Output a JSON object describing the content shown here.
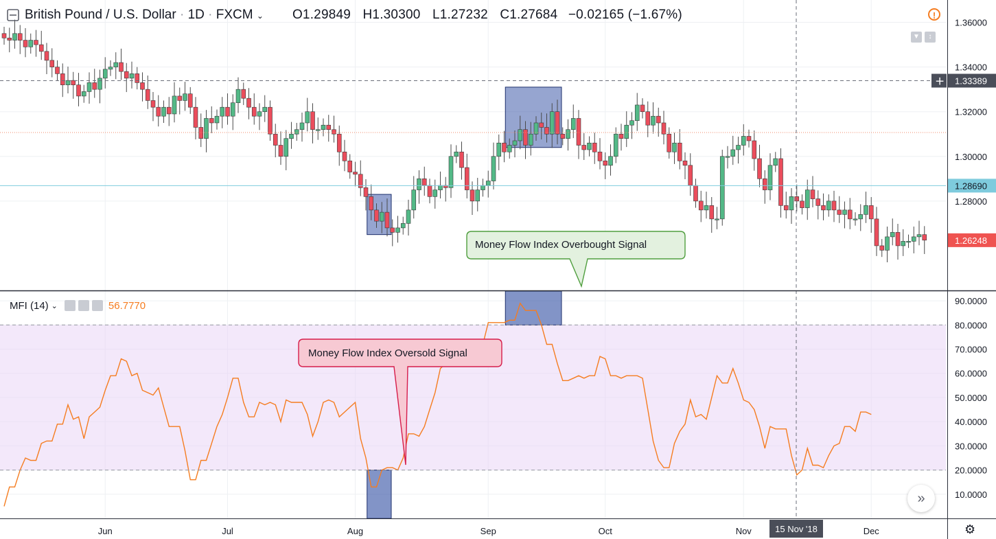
{
  "header": {
    "symbol": "British Pound / U.S. Dollar",
    "interval": "1D",
    "exchange": "FXCM",
    "open": "O1.29849",
    "high": "H1.30300",
    "low": "L1.27232",
    "close": "C1.27684",
    "change": "−0.02165 (−1.67%)"
  },
  "indicator": {
    "name": "MFI (14)",
    "value": "56.7770"
  },
  "annotations": {
    "overbought": "Money Flow Index Overbought Signal",
    "oversold": "Money Flow Index Oversold Signal"
  },
  "colors": {
    "up": "#53b987",
    "down": "#eb4d5c",
    "mfi_line": "#f57c1f",
    "band": "#e9d5f5",
    "highlight": "#3f5ba9",
    "crosshair_label": "#4a4e59",
    "price_label": "#ef5350",
    "cyan_label": "#7ecbdd"
  },
  "icons": [
    "collapse-icon",
    "chevron-down-icon",
    "warning-icon",
    "settings-icon",
    "forward-icon"
  ],
  "chart_data": [
    {
      "type": "candlestick",
      "title": "British Pound / U.S. Dollar · 1D · FXCM",
      "y_ticks": [
        "1.36000",
        "1.34000",
        "1.32000",
        "1.30000",
        "1.28000"
      ],
      "ylim": [
        1.24,
        1.37
      ],
      "price_labels": {
        "crosshair": "1.33389",
        "line": "1.28690",
        "last": "1.26248"
      },
      "x_ticks": [
        "Jun",
        "Jul",
        "Aug",
        "Sep",
        "Oct",
        "Nov",
        "Dec"
      ],
      "crosshair_date": "15 Nov '18",
      "closes": [
        1.353,
        1.352,
        1.355,
        1.352,
        1.349,
        1.352,
        1.35,
        1.347,
        1.343,
        1.34,
        1.337,
        1.332,
        1.334,
        1.332,
        1.327,
        1.329,
        1.333,
        1.33,
        1.335,
        1.339,
        1.34,
        1.342,
        1.338,
        1.335,
        1.337,
        1.333,
        1.33,
        1.325,
        1.322,
        1.318,
        1.322,
        1.319,
        1.327,
        1.325,
        1.328,
        1.322,
        1.313,
        1.308,
        1.317,
        1.315,
        1.318,
        1.322,
        1.318,
        1.324,
        1.33,
        1.326,
        1.322,
        1.318,
        1.32,
        1.322,
        1.31,
        1.305,
        1.3,
        1.308,
        1.31,
        1.312,
        1.315,
        1.32,
        1.312,
        1.312,
        1.314,
        1.312,
        1.31,
        1.302,
        1.298,
        1.293,
        1.292,
        1.286,
        1.282,
        1.276,
        1.271,
        1.275,
        1.268,
        1.266,
        1.268,
        1.27,
        1.276,
        1.285,
        1.29,
        1.287,
        1.282,
        1.285,
        1.287,
        1.286,
        1.3,
        1.302,
        1.295,
        1.285,
        1.28,
        1.285,
        1.287,
        1.289,
        1.3,
        1.306,
        1.302,
        1.305,
        1.307,
        1.312,
        1.305,
        1.31,
        1.315,
        1.313,
        1.31,
        1.32,
        1.31,
        1.308,
        1.312,
        1.317,
        1.305,
        1.303,
        1.306,
        1.302,
        1.298,
        1.296,
        1.3,
        1.31,
        1.308,
        1.314,
        1.316,
        1.323,
        1.32,
        1.314,
        1.318,
        1.315,
        1.31,
        1.302,
        1.306,
        1.298,
        1.296,
        1.287,
        1.28,
        1.276,
        1.278,
        1.272,
        1.272,
        1.3,
        1.3,
        1.303,
        1.305,
        1.309,
        1.307,
        1.299,
        1.29,
        1.285,
        1.296,
        1.299,
        1.278,
        1.276,
        1.282,
        1.28,
        1.277,
        1.285,
        1.281,
        1.278,
        1.276,
        1.28,
        1.276,
        1.274,
        1.276,
        1.272,
        1.272,
        1.274,
        1.278,
        1.272,
        1.26,
        1.258,
        1.264,
        1.266,
        1.26,
        1.262,
        1.262,
        1.264,
        1.265,
        1.2625
      ],
      "highlight_ranges": [
        {
          "from_index": 69,
          "to_index": 72,
          "price_range": [
            1.265,
            1.283
          ]
        },
        {
          "from_index": 95,
          "to_index": 104,
          "price_range": [
            1.304,
            1.331
          ]
        }
      ]
    },
    {
      "type": "line",
      "title": "MFI (14)",
      "y_ticks": [
        "90.0000",
        "80.0000",
        "70.0000",
        "60.0000",
        "50.0000",
        "40.0000",
        "30.0000",
        "20.0000",
        "10.0000"
      ],
      "ylim": [
        0,
        94
      ],
      "bands": {
        "upper": 80,
        "lower": 20
      },
      "values": [
        5,
        13,
        13,
        20,
        25,
        24,
        24,
        31,
        32,
        32,
        39,
        39,
        47,
        41,
        42,
        33,
        42,
        44,
        46,
        53,
        59,
        59,
        66,
        65,
        59,
        60,
        53,
        52,
        51,
        54,
        46,
        38,
        38,
        38,
        28,
        16,
        16,
        24,
        24,
        31,
        38,
        43,
        50,
        58,
        58,
        48,
        42,
        42,
        48,
        47,
        48,
        47,
        40,
        49,
        48,
        48,
        48,
        43,
        34,
        40,
        48,
        49,
        48,
        42,
        44,
        46,
        48,
        33,
        25,
        13,
        13,
        20,
        21,
        21,
        20,
        25,
        35,
        35,
        34,
        38,
        45,
        52,
        62,
        64,
        64,
        66,
        66,
        67,
        67,
        68,
        72,
        81,
        81,
        81,
        81,
        82,
        82,
        89,
        86,
        86,
        86,
        80,
        72,
        72,
        64,
        57,
        57,
        58,
        59,
        58,
        59,
        59,
        67,
        66,
        59,
        59,
        58,
        59,
        59,
        59,
        58,
        45,
        32,
        24,
        21,
        21,
        31,
        36,
        39,
        49,
        42,
        43,
        41,
        50,
        59,
        56,
        56,
        62,
        56,
        49,
        48,
        45,
        38,
        29,
        38,
        37,
        37,
        37,
        26,
        18,
        20,
        29,
        22,
        22,
        21,
        26,
        30,
        31,
        38,
        38,
        36,
        44,
        44,
        43
      ],
      "highlight_ranges": [
        {
          "from_index": 69,
          "to_index": 72,
          "value_range": [
            0,
            20
          ]
        },
        {
          "from_index": 95,
          "to_index": 104,
          "value_range": [
            80,
            94
          ]
        }
      ]
    }
  ]
}
